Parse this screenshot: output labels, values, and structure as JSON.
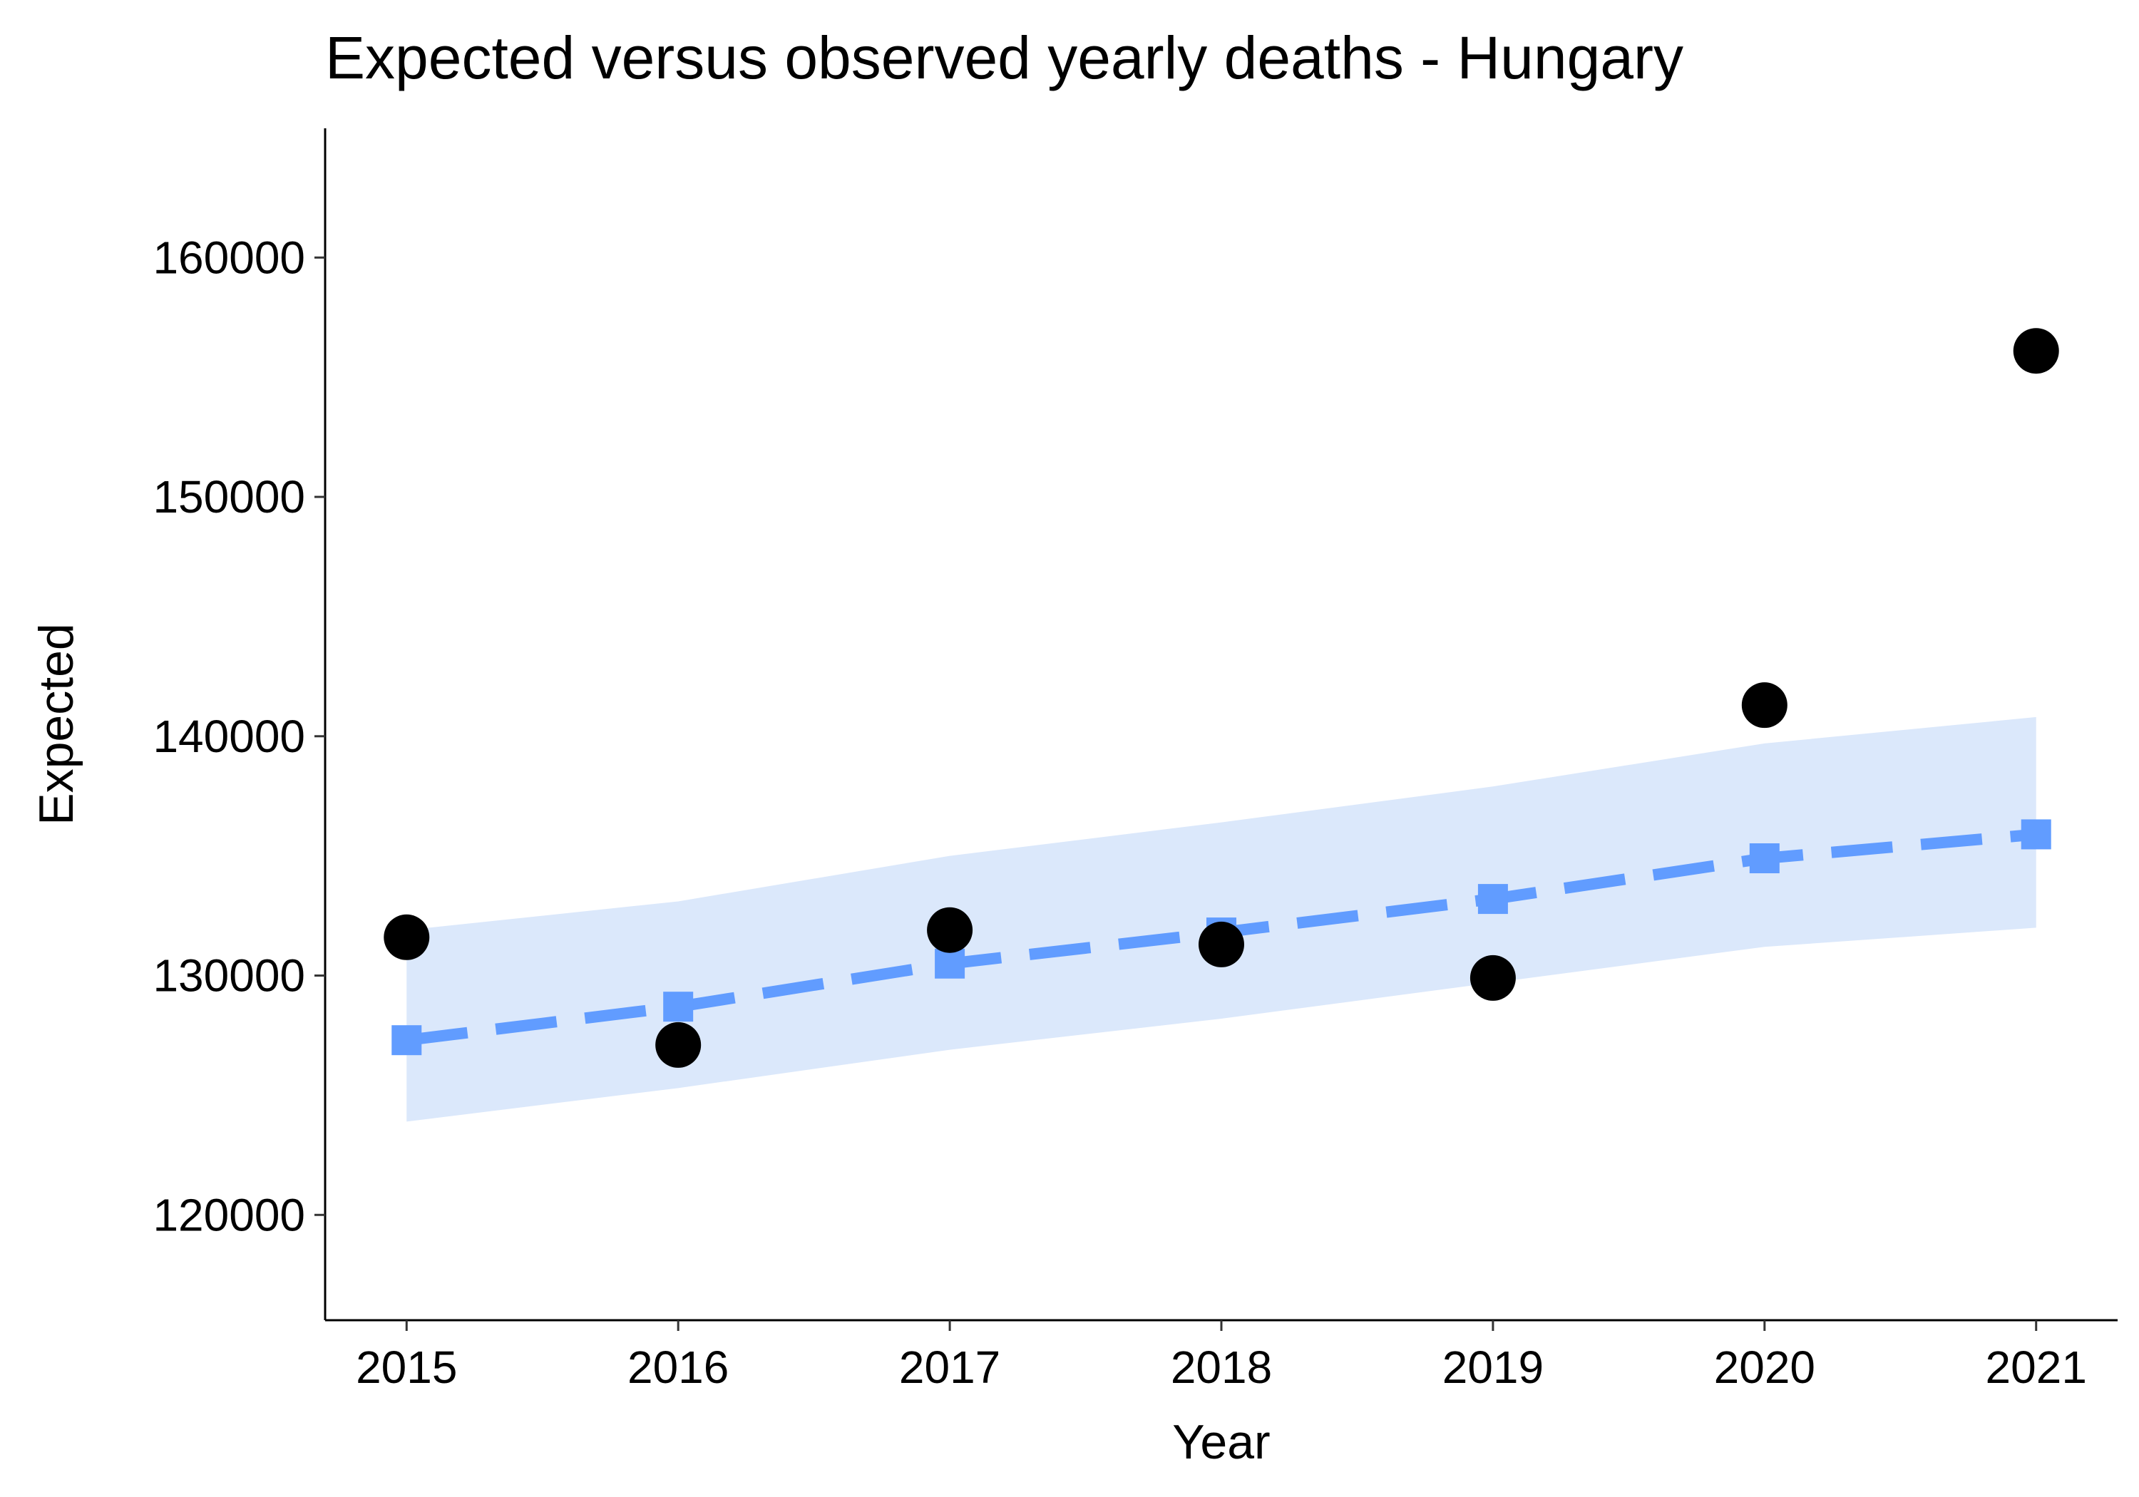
{
  "chart_data": {
    "type": "line",
    "title": "Expected versus observed yearly deaths - Hungary",
    "xlabel": "Year",
    "ylabel": "Expected",
    "x": [
      2015,
      2016,
      2017,
      2018,
      2019,
      2020,
      2021
    ],
    "x_tick_labels": [
      "2015",
      "2016",
      "2017",
      "2018",
      "2019",
      "2020",
      "2021"
    ],
    "y_ticks": [
      120000,
      130000,
      140000,
      150000,
      160000
    ],
    "y_tick_labels": [
      "120000",
      "130000",
      "140000",
      "150000",
      "160000"
    ],
    "xlim": [
      2014.7,
      2021.3
    ],
    "ylim": [
      115600,
      165400
    ],
    "grid": false,
    "series": [
      {
        "kind": "expected-line",
        "style": "dashed line with square markers",
        "color": "#619cff",
        "values": [
          127300,
          128700,
          130500,
          131800,
          133200,
          134900,
          135900
        ]
      },
      {
        "kind": "expected-ribbon",
        "color": "#dbe8fb",
        "lower": [
          123900,
          125300,
          126900,
          128200,
          129700,
          131200,
          132000
        ],
        "upper": [
          131900,
          133100,
          135000,
          136400,
          137900,
          139700,
          140800
        ]
      },
      {
        "kind": "observed-points",
        "style": "filled circles",
        "color": "#000000",
        "values": [
          131600,
          127100,
          131900,
          131300,
          129900,
          141300,
          156100
        ]
      }
    ]
  }
}
